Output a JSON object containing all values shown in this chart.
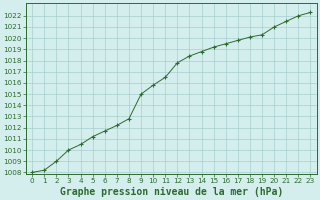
{
  "x": [
    0,
    1,
    2,
    3,
    4,
    5,
    6,
    7,
    8,
    9,
    10,
    11,
    12,
    13,
    14,
    15,
    16,
    17,
    18,
    19,
    20,
    21,
    22,
    23
  ],
  "y": [
    1008.0,
    1008.2,
    1009.0,
    1010.0,
    1010.5,
    1011.2,
    1011.7,
    1012.2,
    1012.8,
    1015.0,
    1015.8,
    1016.5,
    1017.8,
    1018.4,
    1018.8,
    1019.2,
    1019.5,
    1019.8,
    1020.1,
    1020.3,
    1021.0,
    1021.5,
    1022.0,
    1022.3
  ],
  "line_color": "#2d6a2d",
  "marker_color": "#2d6a2d",
  "bg_color": "#d4eeee",
  "grid_color": "#9cc8c8",
  "title": "Graphe pression niveau de la mer (hPa)",
  "ylim": [
    1008,
    1023
  ],
  "xlim": [
    -0.5,
    23.5
  ],
  "yticks": [
    1008,
    1009,
    1010,
    1011,
    1012,
    1013,
    1014,
    1015,
    1016,
    1017,
    1018,
    1019,
    1020,
    1021,
    1022
  ],
  "xticks": [
    0,
    1,
    2,
    3,
    4,
    5,
    6,
    7,
    8,
    9,
    10,
    11,
    12,
    13,
    14,
    15,
    16,
    17,
    18,
    19,
    20,
    21,
    22,
    23
  ],
  "title_fontsize": 7.0,
  "tick_fontsize": 5.2,
  "title_color": "#2d6a2d",
  "tick_color": "#2d6a2d",
  "spine_color": "#2d6a2d"
}
